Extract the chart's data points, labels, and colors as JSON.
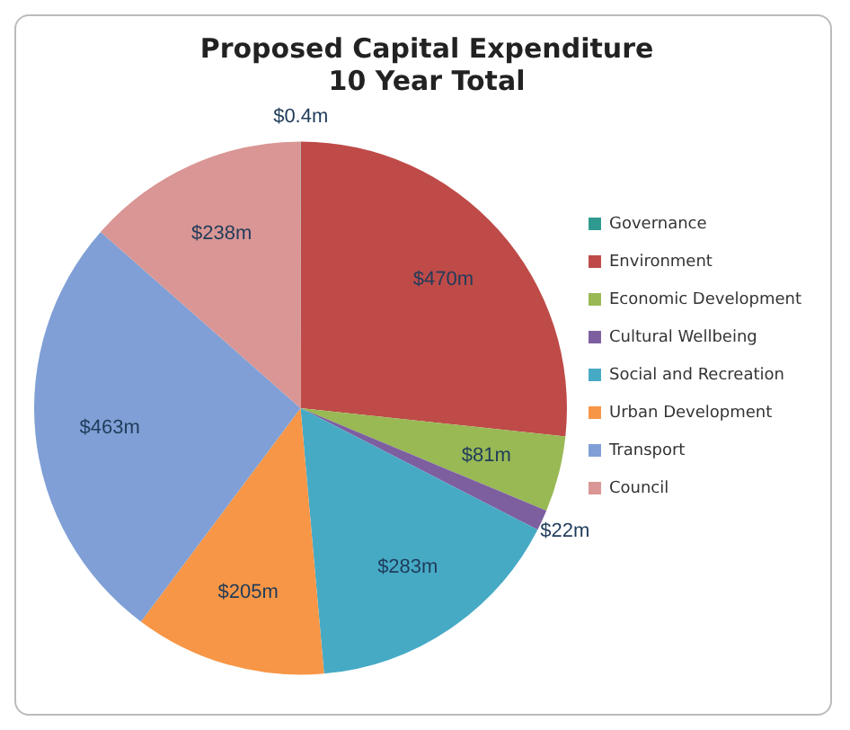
{
  "chart_data": {
    "type": "pie",
    "title": "Proposed Capital Expenditure\n10 Year Total",
    "categories": [
      "Governance",
      "Environment",
      "Economic Development",
      "Cultural Wellbeing",
      "Social and Recreation",
      "Urban Development",
      "Transport",
      "Council"
    ],
    "values": [
      0.4,
      470,
      81,
      22,
      283,
      205,
      463,
      238
    ],
    "value_labels": [
      "$0.4m",
      "$470m",
      "$81m",
      "$22m",
      "$283m",
      "$205m",
      "$463m",
      "$238m"
    ],
    "colors": [
      "#2f9a8f",
      "#be4b48",
      "#98b954",
      "#7d5fa0",
      "#46aac5",
      "#f79646",
      "#7f9fd6",
      "#d99694"
    ],
    "legend": "right"
  }
}
